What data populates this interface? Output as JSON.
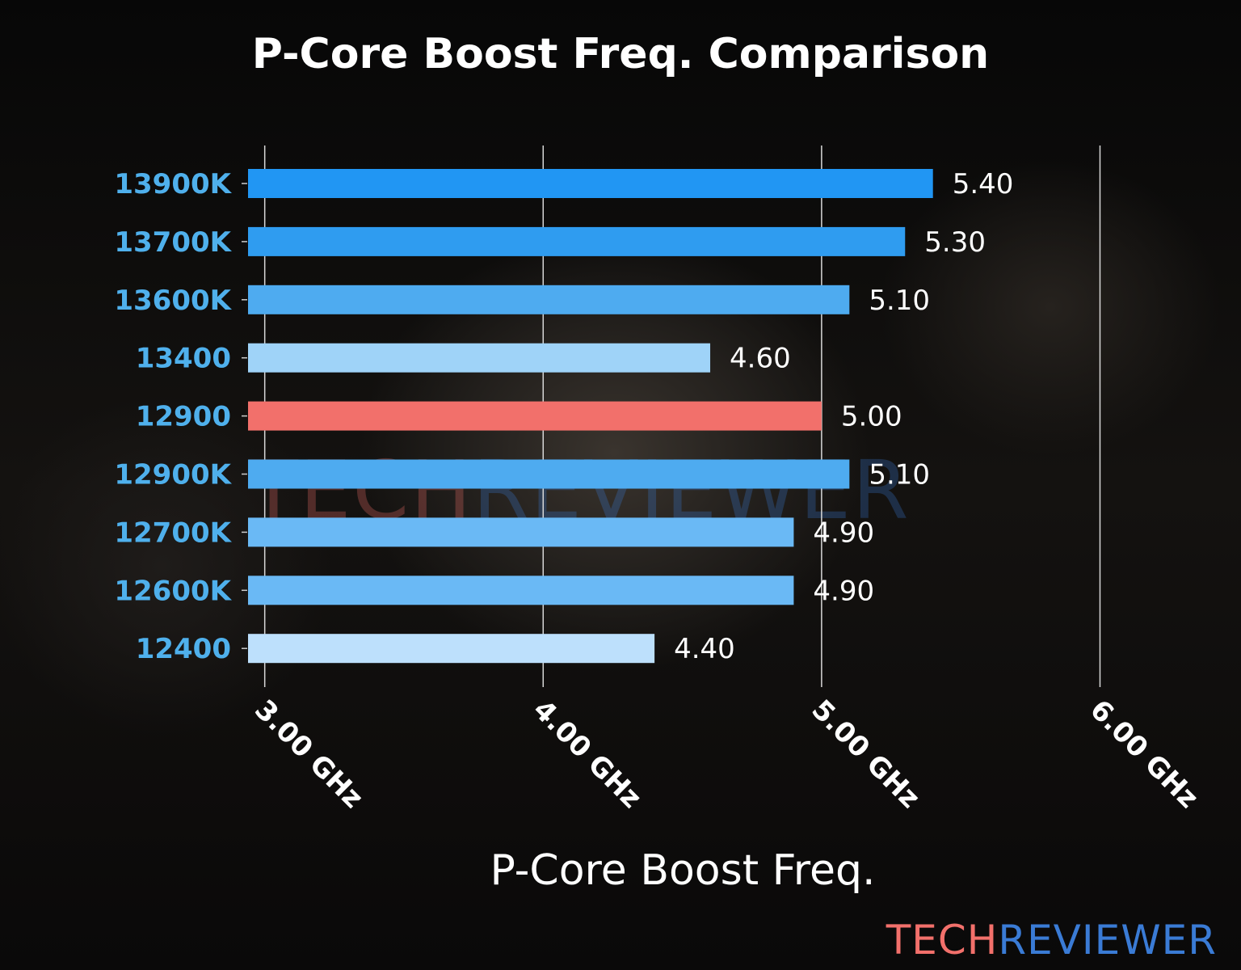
{
  "chart_data": {
    "type": "bar",
    "orientation": "horizontal",
    "title": "P-Core Boost Freq. Comparison",
    "xlabel": "P-Core Boost Freq.",
    "ylabel": "",
    "categories": [
      "13900K",
      "13700K",
      "13600K",
      "13400",
      "12900",
      "12900K",
      "12700K",
      "12600K",
      "12400"
    ],
    "values": [
      5.4,
      5.3,
      5.1,
      4.6,
      5.0,
      5.1,
      4.9,
      4.9,
      4.4
    ],
    "value_labels": [
      "5.40",
      "5.30",
      "5.10",
      "4.60",
      "5.00",
      "5.10",
      "4.90",
      "4.90",
      "4.40"
    ],
    "colors": [
      "#2196f3",
      "#2f9cf0",
      "#4eabf0",
      "#9fd3f8",
      "#f2706b",
      "#4eabf0",
      "#6ab9f5",
      "#6ab9f5",
      "#bde0fc"
    ],
    "xticks": [
      3,
      4,
      5,
      6
    ],
    "xtick_labels": [
      "3.00 GHz",
      "4.00 GHz",
      "5.00 GHz",
      "6.00 GHz"
    ],
    "xlim": [
      2.94,
      6.06
    ],
    "grid": "vertical",
    "legend": "none"
  },
  "branding": {
    "logo_part1": "TECH",
    "logo_part2": "REVIEWER",
    "color1": "#f2706b",
    "color2": "#3a7bd5"
  }
}
